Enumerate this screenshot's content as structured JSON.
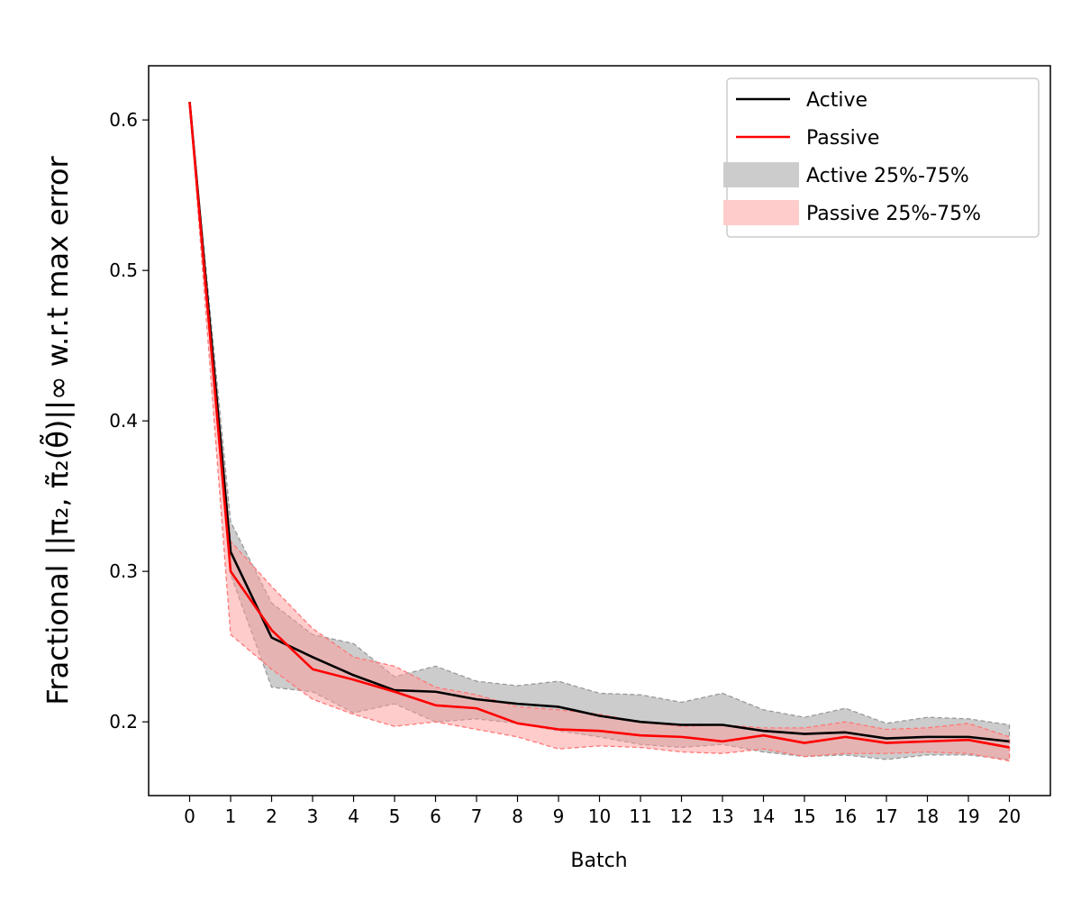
{
  "chart_data": {
    "type": "line",
    "title": "",
    "xlabel": "Batch",
    "ylabel": "Fractional ||π₂, π̃₂(θ̃)||∞ w.r.t max error",
    "xlim": [
      -1,
      21
    ],
    "ylim": [
      0.151,
      0.636
    ],
    "x_ticks": [
      "0",
      "1",
      "2",
      "3",
      "4",
      "5",
      "6",
      "7",
      "8",
      "9",
      "10",
      "11",
      "12",
      "13",
      "14",
      "15",
      "16",
      "17",
      "18",
      "19",
      "20"
    ],
    "y_ticks": [
      "0.2",
      "0.3",
      "0.4",
      "0.5",
      "0.6"
    ],
    "x": [
      0,
      1,
      2,
      3,
      4,
      5,
      6,
      7,
      8,
      9,
      10,
      11,
      12,
      13,
      14,
      15,
      16,
      17,
      18,
      19,
      20
    ],
    "series": [
      {
        "name": "Active",
        "color": "#000000",
        "values": [
          0.612,
          0.313,
          0.256,
          0.243,
          0.231,
          0.221,
          0.22,
          0.215,
          0.212,
          0.21,
          0.204,
          0.2,
          0.198,
          0.198,
          0.194,
          0.192,
          0.193,
          0.189,
          0.19,
          0.19,
          0.187
        ]
      },
      {
        "name": "Passive",
        "color": "#ff0000",
        "values": [
          0.612,
          0.3,
          0.261,
          0.235,
          0.228,
          0.22,
          0.211,
          0.209,
          0.199,
          0.195,
          0.194,
          0.191,
          0.19,
          0.187,
          0.191,
          0.186,
          0.19,
          0.186,
          0.187,
          0.188,
          0.183
        ]
      }
    ],
    "bands": [
      {
        "name": "Active 25%-75%",
        "fill": "#cccccc",
        "edge": "#999999",
        "upper": [
          0.612,
          0.333,
          0.279,
          0.258,
          0.252,
          0.23,
          0.237,
          0.227,
          0.224,
          0.227,
          0.219,
          0.218,
          0.213,
          0.219,
          0.208,
          0.203,
          0.209,
          0.199,
          0.203,
          0.202,
          0.198
        ],
        "lower": [
          0.612,
          0.298,
          0.223,
          0.22,
          0.206,
          0.212,
          0.2,
          0.202,
          0.199,
          0.194,
          0.19,
          0.185,
          0.183,
          0.185,
          0.18,
          0.177,
          0.178,
          0.175,
          0.178,
          0.178,
          0.175
        ]
      },
      {
        "name": "Passive 25%-75%",
        "fill": "#ff9999",
        "edge": "#ff7777",
        "upper": [
          0.612,
          0.32,
          0.29,
          0.262,
          0.243,
          0.237,
          0.223,
          0.218,
          0.21,
          0.208,
          0.205,
          0.2,
          0.197,
          0.198,
          0.196,
          0.196,
          0.2,
          0.195,
          0.196,
          0.199,
          0.19
        ],
        "lower": [
          0.612,
          0.258,
          0.235,
          0.215,
          0.205,
          0.197,
          0.2,
          0.195,
          0.19,
          0.182,
          0.184,
          0.183,
          0.18,
          0.179,
          0.182,
          0.177,
          0.179,
          0.179,
          0.18,
          0.179,
          0.174
        ]
      }
    ],
    "legend": {
      "placement": "top-right",
      "entries": [
        {
          "label": "Active",
          "kind": "line",
          "color": "#000000"
        },
        {
          "label": "Passive",
          "kind": "line",
          "color": "#ff0000"
        },
        {
          "label": "Active 25%-75%",
          "kind": "patch",
          "color": "#cccccc"
        },
        {
          "label": "Passive 25%-75%",
          "kind": "patch",
          "color": "#ffcccc"
        }
      ]
    },
    "grid": false
  }
}
